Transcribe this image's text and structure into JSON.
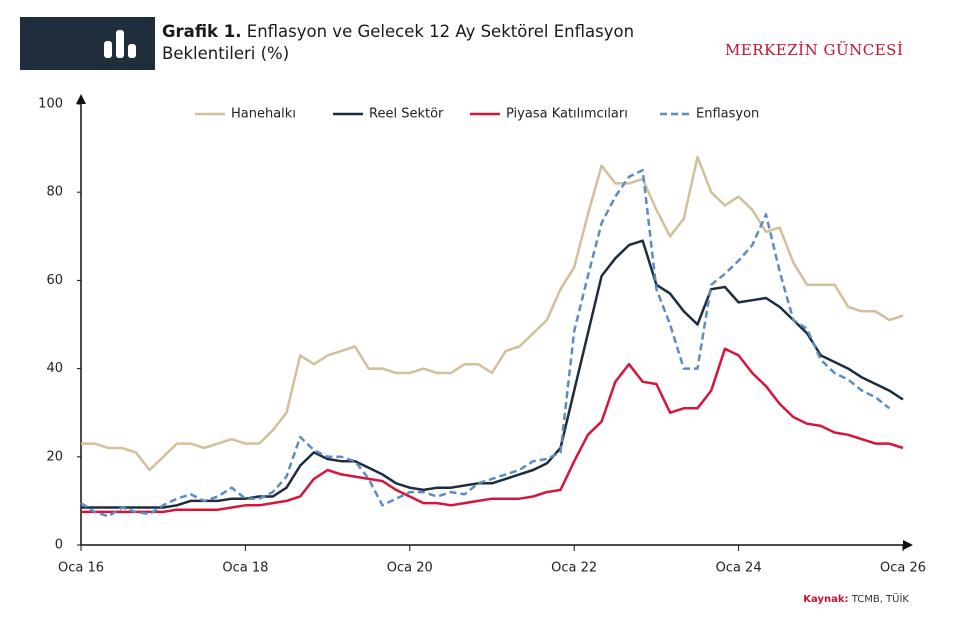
{
  "header": {
    "title_label": "Grafik 1.",
    "title": "Enflasyon ve Gelecek 12 Ay Sektörel Enflasyon Beklentileri (%)",
    "brand": "MERKEZİN GÜNCESİ"
  },
  "chart_data": {
    "type": "line",
    "x": [
      2016,
      2016.167,
      2016.333,
      2016.5,
      2016.667,
      2016.833,
      2017,
      2017.167,
      2017.333,
      2017.5,
      2017.667,
      2017.833,
      2018,
      2018.167,
      2018.333,
      2018.5,
      2018.667,
      2018.833,
      2019,
      2019.167,
      2019.333,
      2019.5,
      2019.667,
      2019.833,
      2020,
      2020.167,
      2020.333,
      2020.5,
      2020.667,
      2020.833,
      2021,
      2021.167,
      2021.333,
      2021.5,
      2021.667,
      2021.833,
      2022,
      2022.167,
      2022.333,
      2022.5,
      2022.667,
      2022.833,
      2023,
      2023.167,
      2023.333,
      2023.5,
      2023.667,
      2023.833,
      2024,
      2024.167,
      2024.333,
      2024.5,
      2024.667,
      2024.833,
      2025,
      2025.167,
      2025.333,
      2025.5,
      2025.667,
      2025.833,
      2026
    ],
    "series": [
      {
        "name": "Hanehalkı",
        "color": "#d3bf9a",
        "dash": false,
        "values": [
          23,
          23,
          22,
          22,
          21,
          17,
          20,
          23,
          23,
          22,
          23,
          24,
          23,
          23,
          26,
          30,
          43,
          41,
          43,
          44,
          45,
          40,
          40,
          39,
          39,
          40,
          39,
          39,
          41,
          41,
          39,
          44,
          45,
          48,
          51,
          58,
          63,
          75,
          86,
          82,
          82,
          83,
          76,
          70,
          74,
          88,
          80,
          77,
          79,
          76,
          71,
          72,
          64,
          59,
          59,
          59,
          54,
          53,
          53,
          51,
          52
        ]
      },
      {
        "name": "Reel Sektör",
        "color": "#1c2d40",
        "dash": false,
        "values": [
          8.5,
          8.5,
          8.5,
          8.5,
          8.5,
          8.5,
          8.5,
          9,
          10,
          10,
          10,
          10.5,
          10.5,
          11,
          11,
          13,
          18,
          21,
          19.5,
          19,
          19,
          17.5,
          16,
          14,
          13,
          12.5,
          13,
          13,
          13.5,
          14,
          14,
          15,
          16,
          17,
          18.5,
          22,
          35,
          48,
          61,
          65,
          68,
          69,
          59,
          57,
          53,
          50,
          58,
          58.5,
          55,
          55.5,
          56,
          54,
          51,
          48,
          43,
          41.5,
          40,
          38,
          36.5,
          35,
          33
        ]
      },
      {
        "name": "Piyasa Katılımcıları",
        "color": "#d7153a",
        "dash": false,
        "values": [
          7.5,
          7.5,
          7.5,
          7.5,
          7.5,
          7.5,
          7.5,
          8,
          8,
          8,
          8,
          8.5,
          9,
          9,
          9.5,
          10,
          11,
          15,
          17,
          16,
          15.5,
          15,
          14.5,
          12.5,
          11,
          9.5,
          9.5,
          9,
          9.5,
          10,
          10.5,
          10.5,
          10.5,
          11,
          12,
          12.5,
          19,
          25,
          28,
          37,
          41,
          37,
          36.5,
          30,
          31,
          31,
          35,
          44.5,
          43,
          39,
          36,
          32,
          29,
          27.5,
          27,
          25.5,
          25,
          24,
          23,
          23,
          22
        ]
      },
      {
        "name": "Enflasyon",
        "color": "#5b8cc4",
        "dash": true,
        "values": [
          9.5,
          7.5,
          6.5,
          8.5,
          7.5,
          7,
          9,
          10.5,
          11.5,
          10,
          11,
          13,
          10.5,
          10.5,
          12,
          15.5,
          24.5,
          21.5,
          20,
          20,
          19,
          15,
          9,
          10.5,
          12,
          12,
          11,
          12,
          11.5,
          14,
          15,
          16,
          17,
          19,
          19.5,
          21,
          48.5,
          61,
          73,
          79,
          83.5,
          85,
          58,
          50,
          40,
          40,
          59,
          61.5,
          64.5,
          68,
          75,
          62,
          51,
          49,
          42,
          39,
          37.5,
          35,
          33.5,
          31,
          null
        ]
      }
    ],
    "xlim": [
      2016,
      2026
    ],
    "xticks": [
      {
        "value": 2016,
        "label": "Oca 16"
      },
      {
        "value": 2018,
        "label": "Oca 18"
      },
      {
        "value": 2020,
        "label": "Oca 20"
      },
      {
        "value": 2022,
        "label": "Oca 22"
      },
      {
        "value": 2024,
        "label": "Oca 24"
      },
      {
        "value": 2026,
        "label": "Oca 26"
      }
    ],
    "ylim": [
      0,
      100
    ],
    "yticks": [
      0,
      20,
      40,
      60,
      80,
      100
    ],
    "grid": false
  },
  "source": {
    "label": "Kaynak:",
    "text": "TCMB, TÜİK"
  }
}
